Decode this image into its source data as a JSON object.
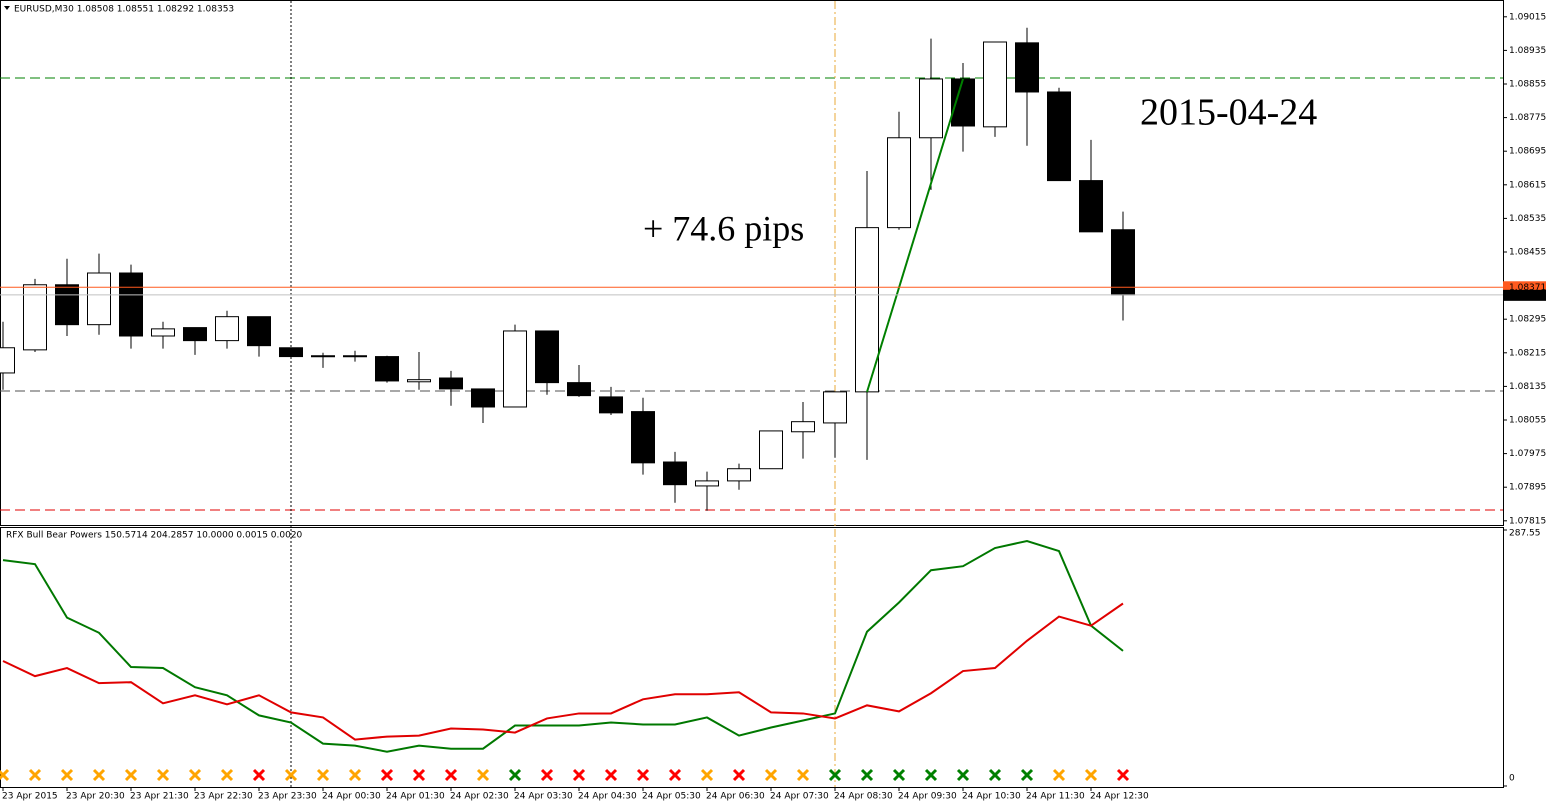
{
  "chart_data": [
    {
      "type": "candlestick",
      "title": "EURUSD,M30  1.08508 1.08551 1.08292 1.08353",
      "annotations": [
        "+ 74.6 pips",
        "2015-04-24"
      ],
      "categories": [
        "23 Apr 2015",
        null,
        "23 Apr 20:30",
        null,
        "23 Apr 21:30",
        null,
        "23 Apr 22:30",
        null,
        "23 Apr 23:30",
        null,
        "24 Apr 00:30",
        null,
        "24 Apr 01:30",
        null,
        "24 Apr 02:30",
        null,
        "24 Apr 03:30",
        null,
        "24 Apr 04:30",
        null,
        "24 Apr 05:30",
        null,
        "24 Apr 06:30",
        null,
        "24 Apr 07:30",
        null,
        "24 Apr 08:30",
        null,
        "24 Apr 09:30",
        null,
        "24 Apr 10:30",
        null,
        "24 Apr 11:30",
        null,
        "24 Apr 12:30",
        null
      ],
      "open": [
        1.08167,
        1.08222,
        1.08377,
        1.08282,
        1.08405,
        1.08255,
        1.08275,
        1.08244,
        1.08301,
        1.08227,
        1.08208,
        1.08208,
        1.08206,
        1.08146,
        1.08155,
        1.08129,
        1.08086,
        1.08267,
        1.08144,
        1.0811,
        1.08075,
        1.07955,
        1.07898,
        1.0791,
        1.07939,
        1.08027,
        1.08048,
        1.08122,
        1.08513,
        1.08727,
        1.08867,
        1.08753,
        1.08953,
        1.08836,
        1.08625,
        1.08508
      ],
      "high": [
        1.08289,
        1.08391,
        1.08439,
        1.08451,
        1.08425,
        1.08289,
        1.08275,
        1.08315,
        1.08301,
        1.08227,
        1.08215,
        1.0822,
        1.08208,
        1.08217,
        1.08172,
        1.08129,
        1.08282,
        1.08267,
        1.08186,
        1.08134,
        1.08108,
        1.07979,
        1.07932,
        1.07951,
        1.08029,
        1.08098,
        1.08122,
        1.08648,
        1.08789,
        1.08963,
        1.08905,
        1.08955,
        1.08989,
        1.08846,
        1.08722,
        1.08551
      ],
      "low": [
        1.08127,
        1.08217,
        1.08255,
        1.08258,
        1.08225,
        1.08225,
        1.0821,
        1.08225,
        1.08206,
        1.08203,
        1.08179,
        1.08194,
        1.08144,
        1.08127,
        1.08089,
        1.08048,
        1.08086,
        1.08115,
        1.0811,
        1.08067,
        1.07925,
        1.07858,
        1.07839,
        1.07889,
        1.07939,
        1.07963,
        1.07965,
        1.0796,
        1.08508,
        1.08603,
        1.08694,
        1.08729,
        1.08708,
        1.08625,
        1.08503,
        1.08292
      ],
      "close": [
        1.08227,
        1.08377,
        1.08282,
        1.08405,
        1.08255,
        1.08272,
        1.08244,
        1.08301,
        1.08232,
        1.08206,
        1.08206,
        1.08206,
        1.08148,
        1.08151,
        1.08129,
        1.08086,
        1.08267,
        1.08144,
        1.08113,
        1.08072,
        1.07953,
        1.07901,
        1.0791,
        1.07939,
        1.08029,
        1.08051,
        1.08122,
        1.08513,
        1.08727,
        1.08867,
        1.08755,
        1.08955,
        1.08836,
        1.08625,
        1.08503,
        1.08353
      ],
      "ylim": [
        1.07805,
        1.09055
      ],
      "yticks": [
        1.09015,
        1.08935,
        1.08855,
        1.08775,
        1.08695,
        1.08615,
        1.08535,
        1.08455,
        1.08295,
        1.08215,
        1.08135,
        1.08055,
        1.07975,
        1.07895,
        1.07815
      ],
      "level_line": 1.08371,
      "level_color": "#ff5a1f",
      "bid": 1.08353,
      "bid_color": "#c0c0c0",
      "bull_color": "#ffffff",
      "bear_color": "#000000"
    },
    {
      "type": "line",
      "title": "RFX Bull Bear Powers 150.5714 204.2857 10.0000 0.0015 0.0020",
      "series": [
        {
          "color": "#007800",
          "values": [
            253.7,
            249.2,
            189.1,
            172.1,
            133.6,
            132.5,
            111.0,
            101.9,
            79.3,
            71.3,
            47.6,
            45.3,
            38.5,
            45.3,
            41.9,
            41.9,
            67.9,
            67.9,
            67.9,
            71.3,
            69.1,
            69.1,
            77.0,
            56.6,
            65.7,
            73.6,
            81.5,
            173.3,
            206.1,
            242.4,
            246.9,
            267.3,
            275.2,
            263.9,
            180.1,
            151.8
          ]
        },
        {
          "color": "#e00000",
          "values": [
            140.4,
            123.4,
            132.5,
            115.5,
            116.6,
            92.9,
            101.9,
            91.7,
            101.9,
            82.7,
            77.0,
            52.1,
            55.5,
            56.6,
            64.6,
            63.4,
            60.0,
            75.9,
            81.5,
            81.5,
            97.4,
            103.1,
            103.1,
            105.3,
            82.7,
            81.5,
            75.9,
            90.6,
            83.8,
            104.2,
            129.1,
            132.5,
            163.1,
            190.3,
            180.1,
            205.0
          ]
        }
      ],
      "signals": [
        "#ffa500",
        "#ffa500",
        "#ffa500",
        "#ffa500",
        "#ffa500",
        "#ffa500",
        "#ffa500",
        "#ffa500",
        "#ff0000",
        "#ffa500",
        "#ffa500",
        "#ffa500",
        "#ff0000",
        "#ff0000",
        "#ff0000",
        "#ffa500",
        "#008000",
        "#ff0000",
        "#ff0000",
        "#ff0000",
        "#ff0000",
        "#ff0000",
        "#ffa500",
        "#ff0000",
        "#ffa500",
        "#ffa500",
        "#008000",
        "#008000",
        "#008000",
        "#008000",
        "#008000",
        "#008000",
        "#008000",
        "#ffa500",
        "#ffa500",
        "#ff0000"
      ],
      "ylim": [
        0,
        287.55
      ],
      "yticks": [
        287.55,
        0
      ]
    }
  ]
}
